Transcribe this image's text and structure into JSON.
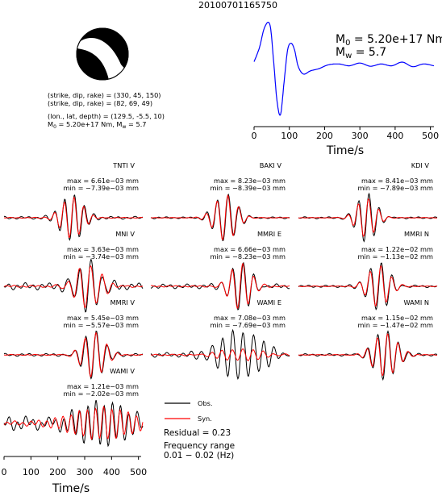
{
  "header": {
    "event_id": "20100701165750"
  },
  "mechanism": {
    "plane1": "(strike, dip, rake) = (330, 45, 150)",
    "plane2": "(strike, dip, rake) = (82, 69, 49)",
    "location": "(lon., lat, depth) = (129.5, -5.5, 10)",
    "moment_line": "M0 = 5.20e+17 Nm, Mw = 5.7"
  },
  "stf": {
    "m0_label": "M0 = 5.20e+17 Nm",
    "mw_label": "Mw = 5.7",
    "xlabel": "Time/s",
    "x_ticks": [
      "0",
      "100",
      "200",
      "300",
      "400",
      "500"
    ],
    "color": "#0000ff"
  },
  "legend": {
    "obs": "Obs.",
    "syn": "Syn.",
    "obs_color": "#000000",
    "syn_color": "#ff0000"
  },
  "residual": "Residual = 0.23",
  "freq_title": "Frequency range",
  "freq_value": "0.01 − 0.02 (Hz)",
  "bottom_axis": {
    "xlabel": "Time/s",
    "x_ticks": [
      "0",
      "100",
      "200",
      "300",
      "400",
      "500"
    ]
  },
  "stations": [
    {
      "name": "TNTI V",
      "max": "max = 6.61e−03 mm",
      "min": "min = −7.39e−03 mm"
    },
    {
      "name": "BAKI V",
      "max": "max = 8.23e−03 mm",
      "min": "min = −8.39e−03 mm"
    },
    {
      "name": "KDI V",
      "max": "max = 8.41e−03 mm",
      "min": "min = −7.89e−03 mm"
    },
    {
      "name": "MNI V",
      "max": "max = 3.63e−03 mm",
      "min": "min = −3.74e−03 mm"
    },
    {
      "name": "MMRI E",
      "max": "max = 6.66e−03 mm",
      "min": "min = −8.23e−03 mm"
    },
    {
      "name": "MMRI N",
      "max": "max = 1.22e−02 mm",
      "min": "min = −1.13e−02 mm"
    },
    {
      "name": "MMRI V",
      "max": "max = 5.45e−03 mm",
      "min": "min = −5.57e−03 mm"
    },
    {
      "name": "WAMI E",
      "max": "max = 7.08e−03 mm",
      "min": "min = −7.69e−03 mm"
    },
    {
      "name": "WAMI N",
      "max": "max = 1.15e−02 mm",
      "min": "min = −1.47e−02 mm"
    },
    {
      "name": "WAMI V",
      "max": "max = 1.21e−03 mm",
      "min": "min = −2.02e−03 mm"
    }
  ],
  "chart_data": {
    "type": "line",
    "title": "20100701165750",
    "source_time_function": {
      "xlabel": "Time/s",
      "xlim": [
        0,
        510
      ],
      "x": [
        0,
        15,
        30,
        45,
        55,
        65,
        75,
        85,
        95,
        105,
        115,
        125,
        140,
        160,
        185,
        210,
        240,
        270,
        300,
        330,
        360,
        390,
        420,
        450,
        480,
        510
      ],
      "y": [
        0.15,
        0.45,
        0.9,
        0.95,
        0.2,
        -0.7,
        -1.0,
        -0.3,
        0.4,
        0.55,
        0.4,
        0.05,
        -0.12,
        -0.05,
        0.0,
        0.08,
        0.1,
        0.06,
        0.12,
        0.05,
        0.1,
        0.06,
        0.14,
        0.04,
        0.1,
        0.06
      ]
    },
    "waveforms": {
      "xlabel": "Time/s",
      "xlim": [
        0,
        510
      ],
      "series": [
        {
          "name": "Obs.",
          "color": "#000000"
        },
        {
          "name": "Syn.",
          "color": "#ff0000"
        }
      ],
      "stations": [
        {
          "name": "TNTI V",
          "max_mm": 0.00661,
          "min_mm": -0.00739,
          "center": 250,
          "period": 36,
          "width": 55,
          "obs_amp": 1.0,
          "syn_amp": 0.85,
          "noise": 0.06
        },
        {
          "name": "BAKI V",
          "max_mm": 0.00823,
          "min_mm": -0.00839,
          "center": 275,
          "period": 40,
          "width": 55,
          "obs_amp": 1.0,
          "syn_amp": 0.95,
          "noise": 0.04
        },
        {
          "name": "KDI V",
          "max_mm": 0.00841,
          "min_mm": -0.00789,
          "center": 250,
          "period": 38,
          "width": 50,
          "obs_amp": 1.0,
          "syn_amp": 0.8,
          "noise": 0.04
        },
        {
          "name": "MNI V",
          "max_mm": 0.00363,
          "min_mm": -0.00374,
          "center": 310,
          "period": 42,
          "width": 65,
          "obs_amp": 1.0,
          "syn_amp": 0.9,
          "noise": 0.15
        },
        {
          "name": "MMRI E",
          "max_mm": 0.00666,
          "min_mm": -0.00823,
          "center": 330,
          "period": 40,
          "width": 55,
          "obs_amp": 1.0,
          "syn_amp": 0.95,
          "noise": 0.1
        },
        {
          "name": "MMRI N",
          "max_mm": 0.0122,
          "min_mm": -0.0113,
          "center": 295,
          "period": 40,
          "width": 55,
          "obs_amp": 1.0,
          "syn_amp": 0.85,
          "noise": 0.05
        },
        {
          "name": "MMRI V",
          "max_mm": 0.00545,
          "min_mm": -0.00557,
          "center": 330,
          "period": 40,
          "width": 55,
          "obs_amp": 1.0,
          "syn_amp": 0.95,
          "noise": 0.06
        },
        {
          "name": "WAMI E",
          "max_mm": 0.00708,
          "min_mm": -0.00769,
          "center": 330,
          "period": 38,
          "width": 110,
          "obs_amp": 1.0,
          "syn_amp": 0.25,
          "noise": 0.1
        },
        {
          "name": "WAMI N",
          "max_mm": 0.0115,
          "min_mm": -0.0147,
          "center": 320,
          "period": 38,
          "width": 60,
          "obs_amp": 1.0,
          "syn_amp": 0.9,
          "noise": 0.05
        },
        {
          "name": "WAMI V",
          "max_mm": 0.00121,
          "min_mm": -0.00202,
          "center": 360,
          "period": 30,
          "width": 150,
          "obs_amp": 1.0,
          "syn_amp": 0.6,
          "noise": 0.35
        }
      ]
    }
  }
}
